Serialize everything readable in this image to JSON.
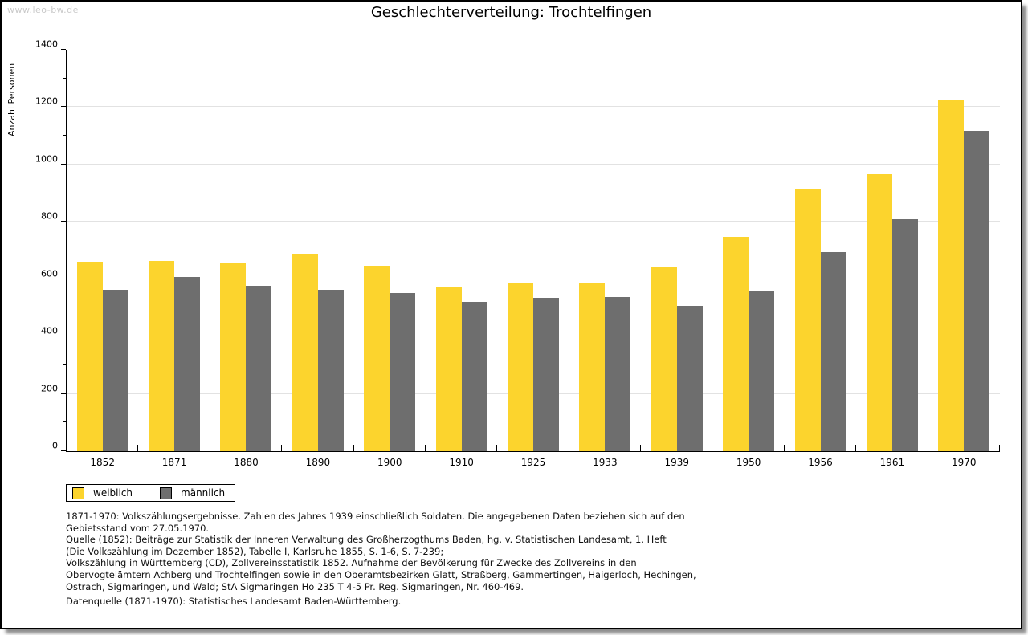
{
  "watermark": "www.leo-bw.de",
  "title": "Geschlechterverteilung: Trochtelfingen",
  "chart_data": {
    "type": "bar",
    "title": "Geschlechterverteilung: Trochtelfingen",
    "xlabel": "",
    "ylabel": "Anzahl Personen",
    "ylim": [
      0,
      1400
    ],
    "ytick_step": 200,
    "ytick_minor_step": 100,
    "grid": true,
    "legend_position": "bottom-left",
    "categories": [
      "1852",
      "1871",
      "1880",
      "1890",
      "1900",
      "1910",
      "1925",
      "1933",
      "1939",
      "1950",
      "1956",
      "1961",
      "1970"
    ],
    "series": [
      {
        "name": "weiblich",
        "color": "#FCD42D",
        "values": [
          660,
          665,
          655,
          688,
          648,
          573,
          588,
          588,
          643,
          747,
          912,
          965,
          1225
        ]
      },
      {
        "name": "männlich",
        "color": "#6E6E6E",
        "values": [
          562,
          607,
          578,
          562,
          553,
          522,
          534,
          537,
          507,
          556,
          694,
          810,
          1116
        ]
      }
    ]
  },
  "legend": {
    "items": [
      {
        "label": "weiblich",
        "color": "#FCD42D"
      },
      {
        "label": "männlich",
        "color": "#6E6E6E"
      }
    ]
  },
  "footnotes": {
    "lines": [
      "1871-1970: Volkszählungsergebnisse. Zahlen des Jahres 1939 einschließlich Soldaten. Die angegebenen Daten beziehen sich auf den",
      "Gebietsstand vom 27.05.1970.",
      "Quelle (1852): Beiträge zur Statistik der Inneren Verwaltung des Großherzogthums Baden, hg. v. Statistischen Landesamt, 1. Heft",
      "(Die Volkszählung im Dezember 1852), Tabelle I, Karlsruhe 1855, S. 1-6, S. 7-239;",
      "Volkszählung in Württemberg (CD), Zollvereinsstatistik 1852. Aufnahme der Bevölkerung für Zwecke des Zollvereins in den",
      "Obervogteiämtern Achberg und Trochtelfingen sowie in den Oberamtsbezirken Glatt, Straßberg, Gammertingen, Haigerloch, Hechingen,",
      "Ostrach, Sigmaringen, und Wald; StA Sigmaringen Ho 235 T 4-5 Pr. Reg. Sigmaringen, Nr. 460-469."
    ],
    "datasource": "Datenquelle (1871-1970): Statistisches Landesamt Baden-Württemberg."
  },
  "colors": {
    "grid": "#E2E2E2",
    "axis": "#000000",
    "watermark": "#C9C9C9",
    "weiblich": "#FCD42D",
    "männlich": "#6E6E6E"
  }
}
